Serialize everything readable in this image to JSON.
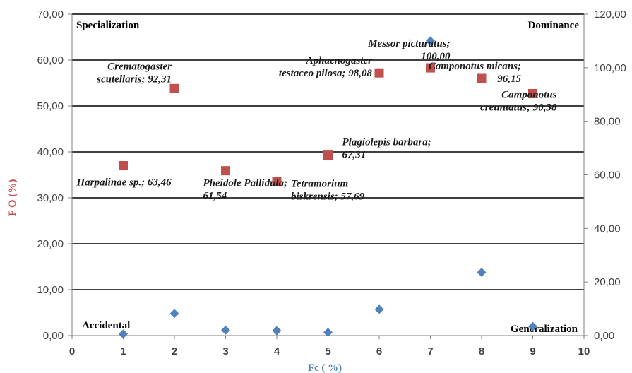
{
  "chart_data": {
    "type": "scatter",
    "xlabel": "Fc ( %)",
    "ylabel": "F O (%)",
    "xlim": [
      0,
      10
    ],
    "ylim": [
      0,
      70
    ],
    "y2lim": [
      0,
      120
    ],
    "grid": "horizontal",
    "x_ticks": [
      "0",
      "1",
      "2",
      "3",
      "4",
      "5",
      "6",
      "7",
      "8",
      "9",
      "10"
    ],
    "y_ticks": [
      "0,00",
      "10,00",
      "20,00",
      "30,00",
      "40,00",
      "50,00",
      "60,00",
      "70,00"
    ],
    "y2_ticks": [
      "0,00",
      "20,00",
      "40,00",
      "60,00",
      "80,00",
      "100,00",
      "120,00"
    ],
    "quadrant_labels": {
      "top_left": "Specialization",
      "top_right": "Dominance",
      "bottom_left": "Accidental",
      "bottom_right": "Generalization"
    },
    "colors": {
      "left_series": "#c0504d",
      "right_series": "#4f81bd",
      "ylabel": "#c0504d",
      "xlabel": "#4f81bd"
    },
    "series": [
      {
        "marker": "square",
        "axis": "left",
        "points": [
          {
            "x": 1,
            "y": 37.0,
            "label": [
              "Harpalinae sp.; 63,46"
            ]
          },
          {
            "x": 2,
            "y": 53.8,
            "label": [
              "Crematogaster",
              "scutellaris; 92,31"
            ]
          },
          {
            "x": 3,
            "y": 35.9,
            "label": [
              "Pheidole Pallidula;",
              "61,54"
            ]
          },
          {
            "x": 4,
            "y": 33.6,
            "label": [
              "Tetramorium",
              "biskrensis; 57,69"
            ]
          },
          {
            "x": 5,
            "y": 39.3,
            "label": [
              "Plagiolepis barbara;",
              "67,31"
            ]
          },
          {
            "x": 6,
            "y": 57.2,
            "label": [
              "Aphaenogaster",
              "testaceo pilosa; 98,08"
            ]
          },
          {
            "x": 7,
            "y": 58.3,
            "label": [
              "Messor picturatus;",
              "100,00"
            ]
          },
          {
            "x": 8,
            "y": 56.0,
            "label": [
              "Camponotus micans;",
              "96,15"
            ]
          },
          {
            "x": 9,
            "y": 52.7,
            "label": [
              "Camponotus",
              "creuntatus; 90,38"
            ]
          }
        ]
      },
      {
        "marker": "diamond",
        "axis": "right",
        "points": [
          {
            "x": 1,
            "y": 0.6
          },
          {
            "x": 2,
            "y": 8.2
          },
          {
            "x": 3,
            "y": 2.0
          },
          {
            "x": 4,
            "y": 1.8
          },
          {
            "x": 5,
            "y": 1.2
          },
          {
            "x": 6,
            "y": 9.8
          },
          {
            "x": 7,
            "y": 110.0
          },
          {
            "x": 8,
            "y": 23.6
          },
          {
            "x": 9,
            "y": 3.4
          }
        ]
      }
    ]
  }
}
